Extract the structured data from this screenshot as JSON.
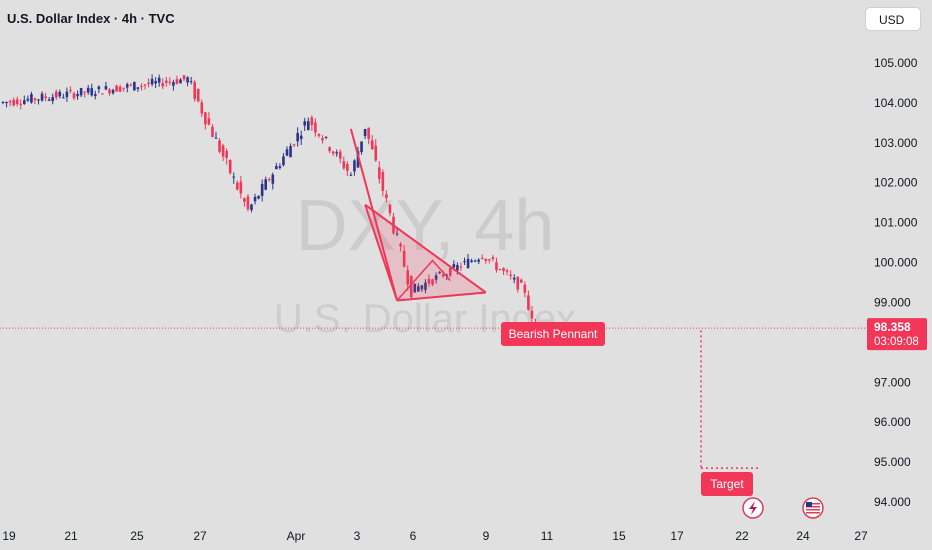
{
  "header": {
    "symbol_title": "U.S. Dollar Index · 4h · TVC",
    "currency_button": "USD"
  },
  "watermark": {
    "ticker": "DXY, 4h",
    "name": "U.S. Dollar Index"
  },
  "colors": {
    "background": "#e0e0e0",
    "bull": "#2a3589",
    "bear": "#f23658",
    "pattern": "#f23658",
    "price_line": "#f23658"
  },
  "chart_data": {
    "type": "candlestick",
    "title": "U.S. Dollar Index · 4h · TVC",
    "ylim": [
      93.5,
      106.3
    ],
    "y_ticks": [
      "105.000",
      "104.000",
      "103.000",
      "102.000",
      "101.000",
      "100.000",
      "99.000",
      "97.000",
      "96.000",
      "95.000",
      "94.000"
    ],
    "x_ticks": [
      "19",
      "21",
      "25",
      "27",
      "Apr",
      "3",
      "6",
      "9",
      "11",
      "15",
      "17",
      "22",
      "24",
      "27"
    ],
    "current_price": {
      "price": "98.358",
      "countdown": "03:09:08",
      "value": 98.358
    },
    "series": [
      {
        "kind": "flat",
        "from": 104.0,
        "to": 104.6,
        "count": 53,
        "vol": 0.25
      },
      {
        "kind": "decline",
        "from": 104.6,
        "to": 101.3,
        "count": 17,
        "vol": 0.35
      },
      {
        "kind": "rally",
        "from": 101.3,
        "to": 103.6,
        "count": 17,
        "vol": 0.3
      },
      {
        "kind": "flat",
        "from": 103.6,
        "to": 102.2,
        "count": 12,
        "vol": 0.3
      },
      {
        "kind": "rally",
        "from": 102.2,
        "to": 103.4,
        "count": 4,
        "vol": 0.3
      },
      {
        "kind": "decline",
        "from": 103.4,
        "to": 99.3,
        "count": 13,
        "vol": 0.35
      },
      {
        "kind": "flat",
        "from": 99.3,
        "to": 100.2,
        "count": 20,
        "vol": 0.25
      },
      {
        "kind": "flat",
        "from": 100.2,
        "to": 99.3,
        "count": 12,
        "vol": 0.25
      },
      {
        "kind": "decline",
        "from": 99.3,
        "to": 98.1,
        "count": 3,
        "vol": 0.3
      },
      {
        "kind": "flat",
        "from": 98.1,
        "to": 98.36,
        "count": 11,
        "vol": 0.2
      }
    ],
    "annotations": {
      "pennant_label": "Bearish Pennant",
      "target_label": "Target",
      "pole_start": {
        "x_index": 98,
        "price": 103.35
      },
      "pole_end": {
        "x_index": 111,
        "price": 99.05
      },
      "pennant_upper_start": {
        "x_index": 102,
        "price": 101.45
      },
      "pennant_lower_start": {
        "x_index": 111,
        "price": 99.05
      },
      "pennant_apex": {
        "x_index": 136,
        "price": 99.25
      },
      "target_price": 94.85
    }
  }
}
